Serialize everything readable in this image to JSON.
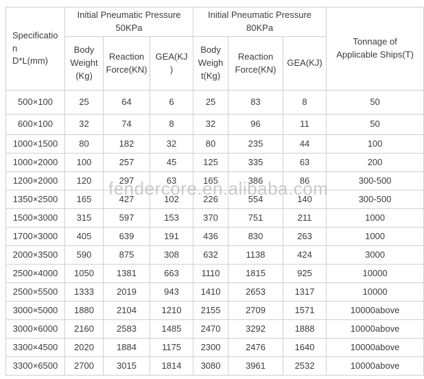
{
  "watermark": "fendercore.en.alibaba.com",
  "table": {
    "header": {
      "spec_label": "Specification\nD*L(mm)",
      "group_50kpa": "Initial Pneumatic Pressure 50KPa",
      "group_80kpa": "Initial Pneumatic Pressure 80KPa",
      "tonnage_label": "Tonnage of Applicable Ships(T)",
      "sub_50kpa": [
        "Body Weight (Kg)",
        "Reaction Force(KN)",
        "GEA(KJ)"
      ],
      "sub_80kpa": [
        "Body Weight(Kg)",
        "Reaction Force(KN)",
        "GEA(KJ)"
      ]
    },
    "rows": [
      [
        "500×100",
        "25",
        "64",
        "6",
        "25",
        "83",
        "8",
        "50"
      ],
      [
        "600×100",
        "32",
        "74",
        "8",
        "32",
        "96",
        "11",
        "50"
      ],
      [
        "1000×1500",
        "80",
        "182",
        "32",
        "80",
        "235",
        "44",
        "100"
      ],
      [
        "1000×2000",
        "100",
        "257",
        "45",
        "125",
        "335",
        "63",
        "200"
      ],
      [
        "1200×2000",
        "120",
        "297",
        "63",
        "165",
        "386",
        "86",
        "300-500"
      ],
      [
        "1350×2500",
        "165",
        "427",
        "102",
        "226",
        "554",
        "140",
        "300-500"
      ],
      [
        "1500×3000",
        "315",
        "597",
        "153",
        "370",
        "751",
        "211",
        "1000"
      ],
      [
        "1700×3000",
        "405",
        "639",
        "191",
        "436",
        "830",
        "263",
        "1000"
      ],
      [
        "2000×3500",
        "590",
        "875",
        "308",
        "632",
        "1138",
        "424",
        "3000"
      ],
      [
        "2500×4000",
        "1050",
        "1381",
        "663",
        "1110",
        "1815",
        "925",
        "10000"
      ],
      [
        "2500×5500",
        "1333",
        "2019",
        "943",
        "1410",
        "2653",
        "1317",
        "10000"
      ],
      [
        "3000×5000",
        "1880",
        "2104",
        "1210",
        "2155",
        "2709",
        "1571",
        "10000above"
      ],
      [
        "3000×6000",
        "2160",
        "2583",
        "1485",
        "2470",
        "3292",
        "1888",
        "10000above"
      ],
      [
        "3300×4500",
        "2020",
        "1884",
        "1175",
        "2300",
        "2476",
        "1640",
        "10000above"
      ],
      [
        "3300×6500",
        "2700",
        "3015",
        "1814",
        "3080",
        "3961",
        "2532",
        "10000above"
      ]
    ]
  }
}
